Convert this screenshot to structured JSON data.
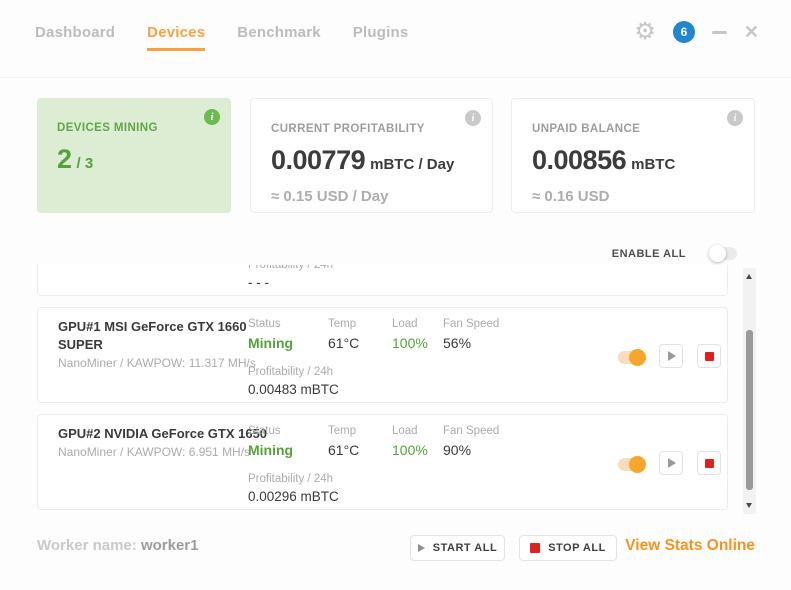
{
  "colors": {
    "accent_orange": "#F7A145",
    "green": "#55A13C",
    "green_card_bg": "#DCEDD3",
    "badge_blue": "#1F86CF",
    "stop_red": "#E02020"
  },
  "nav": {
    "items": [
      {
        "label": "Dashboard",
        "active": false
      },
      {
        "label": "Devices",
        "active": true
      },
      {
        "label": "Benchmark",
        "active": false
      },
      {
        "label": "Plugins",
        "active": false
      }
    ]
  },
  "titlebar": {
    "notification_count": "6"
  },
  "stats": {
    "devices_mining": {
      "label": "DEVICES MINING",
      "value": "2",
      "total": "/ 3"
    },
    "profitability": {
      "label": "CURRENT PROFITABILITY",
      "value": "0.00779",
      "unit": "mBTC / Day",
      "fiat": "≈ 0.15 USD / Day"
    },
    "unpaid_balance": {
      "label": "UNPAID BALANCE",
      "value": "0.00856",
      "unit": "mBTC",
      "fiat": "≈ 0.16 USD"
    }
  },
  "device_list": {
    "enable_all_label": "ENABLE ALL",
    "columns": {
      "status": "Status",
      "temp": "Temp",
      "load": "Load",
      "fan": "Fan Speed",
      "profit": "Profitability / 24h"
    },
    "partial_row": {
      "profit_value": "- - -"
    },
    "devices": [
      {
        "name": "GPU#1 MSI GeForce GTX 1660 SUPER",
        "miner": "NanoMiner / KAWPOW: 11.317 MH/s",
        "status": "Mining",
        "temp": "61°C",
        "load": "100%",
        "fan": "56%",
        "profit": "0.00483 mBTC"
      },
      {
        "name": "GPU#2 NVIDIA GeForce GTX 1650",
        "miner": "NanoMiner / KAWPOW: 6.951 MH/s",
        "status": "Mining",
        "temp": "61°C",
        "load": "100%",
        "fan": "90%",
        "profit": "0.00296 mBTC"
      }
    ]
  },
  "footer": {
    "worker_label": "Worker name:",
    "worker_name": "worker1",
    "start_all_label": "START ALL",
    "stop_all_label": "STOP ALL",
    "view_stats_label": "View Stats Online"
  }
}
